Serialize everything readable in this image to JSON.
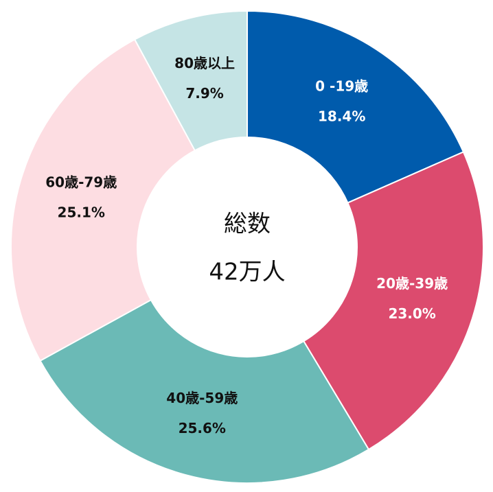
{
  "chart_data": {
    "type": "donut",
    "categories": [
      "0 -19歳",
      "20歳-39歳",
      "40歳-59歳",
      "60歳-79歳",
      "80歳以上"
    ],
    "values": [
      18.4,
      23.0,
      25.6,
      25.1,
      7.9
    ],
    "value_labels": [
      "18.4%",
      "23.0%",
      "25.6%",
      "25.1%",
      "7.9%"
    ],
    "colors": [
      "#005bac",
      "#dc4b6e",
      "#6bbab6",
      "#fddde2",
      "#c5e4e5"
    ],
    "center_title": "総数",
    "center_text": "42万人"
  }
}
